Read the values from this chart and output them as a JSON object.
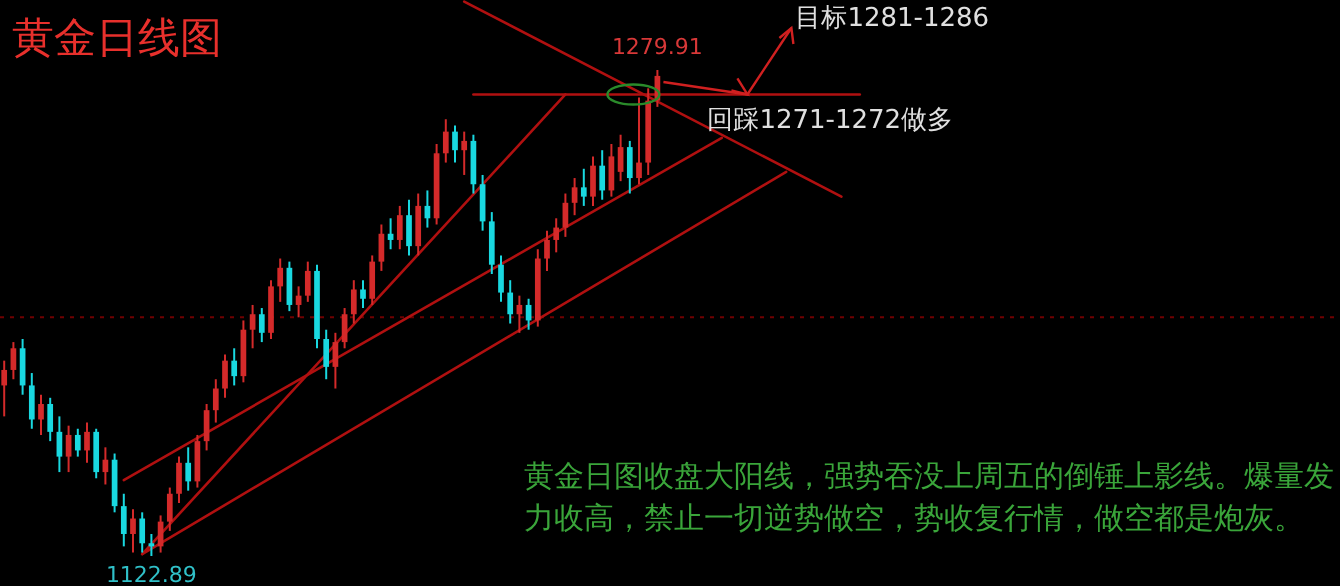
{
  "chart_data": {
    "type": "candlestick",
    "title": "黄金日线图",
    "categories": [
      null,
      null,
      null,
      null,
      null,
      null,
      null,
      null,
      null,
      null,
      null,
      null,
      null,
      null,
      null,
      null,
      null,
      null,
      null,
      null,
      null,
      null,
      null,
      null,
      null,
      null,
      null,
      null,
      null,
      null,
      null,
      null,
      null,
      null,
      null,
      null,
      null,
      null,
      null,
      null,
      null,
      null,
      null,
      null,
      null,
      null,
      null,
      null,
      null,
      null,
      null,
      null,
      null,
      null,
      null,
      null,
      null,
      null,
      null,
      null,
      null,
      null,
      null,
      null,
      null,
      null,
      null,
      null,
      null,
      null,
      null,
      null,
      null,
      null,
      null,
      null,
      null,
      null,
      null,
      null,
      null,
      null,
      null,
      null,
      null,
      null,
      null,
      null,
      null,
      null,
      null,
      null,
      null,
      null
    ],
    "ohlc": [
      [
        1178,
        1186,
        1168,
        1183
      ],
      [
        1183,
        1192,
        1180,
        1190
      ],
      [
        1190,
        1193,
        1175,
        1178
      ],
      [
        1178,
        1182,
        1164,
        1167
      ],
      [
        1167,
        1175,
        1162,
        1172
      ],
      [
        1172,
        1174,
        1160,
        1163
      ],
      [
        1163,
        1168,
        1150,
        1155
      ],
      [
        1155,
        1165,
        1150,
        1162
      ],
      [
        1162,
        1164,
        1155,
        1157
      ],
      [
        1157,
        1166,
        1153,
        1163
      ],
      [
        1163,
        1164,
        1148,
        1150
      ],
      [
        1150,
        1158,
        1146,
        1154
      ],
      [
        1154,
        1156,
        1137,
        1139
      ],
      [
        1139,
        1143,
        1126,
        1130
      ],
      [
        1130,
        1138,
        1124,
        1135
      ],
      [
        1135,
        1137,
        1124,
        1127
      ],
      [
        1127,
        1130,
        1122.89,
        1126
      ],
      [
        1126,
        1136,
        1124,
        1134
      ],
      [
        1134,
        1145,
        1131,
        1143
      ],
      [
        1143,
        1155,
        1140,
        1153
      ],
      [
        1153,
        1158,
        1144,
        1147
      ],
      [
        1147,
        1162,
        1145,
        1160
      ],
      [
        1160,
        1172,
        1157,
        1170
      ],
      [
        1170,
        1180,
        1166,
        1177
      ],
      [
        1177,
        1188,
        1174,
        1186
      ],
      [
        1186,
        1190,
        1178,
        1181
      ],
      [
        1181,
        1199,
        1179,
        1196
      ],
      [
        1196,
        1204,
        1190,
        1201
      ],
      [
        1201,
        1203,
        1192,
        1195
      ],
      [
        1195,
        1212,
        1193,
        1210
      ],
      [
        1210,
        1219,
        1205,
        1216
      ],
      [
        1216,
        1218,
        1202,
        1204
      ],
      [
        1204,
        1210,
        1200,
        1207
      ],
      [
        1207,
        1218,
        1205,
        1215
      ],
      [
        1215,
        1217,
        1190,
        1193
      ],
      [
        1193,
        1196,
        1180,
        1184
      ],
      [
        1184,
        1195,
        1177,
        1192
      ],
      [
        1192,
        1203,
        1190,
        1201
      ],
      [
        1201,
        1212,
        1198,
        1209
      ],
      [
        1209,
        1212,
        1203,
        1206
      ],
      [
        1206,
        1220,
        1204,
        1218
      ],
      [
        1218,
        1230,
        1215,
        1227
      ],
      [
        1227,
        1232,
        1222,
        1225
      ],
      [
        1225,
        1236,
        1222,
        1233
      ],
      [
        1233,
        1238,
        1220,
        1223
      ],
      [
        1223,
        1240,
        1220,
        1236
      ],
      [
        1236,
        1241,
        1229,
        1232
      ],
      [
        1232,
        1256,
        1230,
        1253
      ],
      [
        1253,
        1264,
        1250,
        1260
      ],
      [
        1260,
        1262,
        1250,
        1254
      ],
      [
        1254,
        1260,
        1246,
        1257
      ],
      [
        1257,
        1259,
        1240,
        1243
      ],
      [
        1243,
        1246,
        1228,
        1231
      ],
      [
        1231,
        1234,
        1214,
        1217
      ],
      [
        1217,
        1220,
        1205,
        1208
      ],
      [
        1208,
        1212,
        1198,
        1201
      ],
      [
        1201,
        1207,
        1195,
        1204
      ],
      [
        1204,
        1206,
        1196,
        1199
      ],
      [
        1199,
        1222,
        1197,
        1219
      ],
      [
        1219,
        1228,
        1215,
        1225
      ],
      [
        1225,
        1232,
        1221,
        1229
      ],
      [
        1229,
        1240,
        1226,
        1237
      ],
      [
        1237,
        1245,
        1233,
        1242
      ],
      [
        1242,
        1248,
        1236,
        1239
      ],
      [
        1239,
        1252,
        1236,
        1249
      ],
      [
        1249,
        1254,
        1238,
        1241
      ],
      [
        1241,
        1256,
        1239,
        1252
      ],
      [
        1247,
        1259,
        1244,
        1255
      ],
      [
        1255,
        1257,
        1240,
        1245
      ],
      [
        1245,
        1271,
        1243,
        1250
      ],
      [
        1250,
        1274,
        1246,
        1270
      ],
      [
        1270,
        1279.91,
        1268,
        1278
      ],
      null,
      null,
      null,
      null,
      null,
      null,
      null,
      null,
      null,
      null,
      null,
      null,
      null,
      null,
      null,
      null,
      null,
      null,
      null,
      null,
      null,
      null
    ],
    "colors": [
      "#d42a2a",
      "#d42a2a",
      "#19d8e0",
      "#19d8e0",
      "#d42a2a",
      "#19d8e0",
      "#19d8e0",
      "#d42a2a",
      "#19d8e0",
      "#d42a2a",
      "#19d8e0",
      "#d42a2a",
      "#19d8e0",
      "#19d8e0",
      "#d42a2a",
      "#19d8e0",
      "#19d8e0",
      "#d42a2a",
      "#d42a2a",
      "#d42a2a",
      "#19d8e0",
      "#d42a2a",
      "#d42a2a",
      "#d42a2a",
      "#d42a2a",
      "#19d8e0",
      "#d42a2a",
      "#d42a2a",
      "#19d8e0",
      "#d42a2a",
      "#d42a2a",
      "#19d8e0",
      "#d42a2a",
      "#d42a2a",
      "#19d8e0",
      "#19d8e0",
      "#d42a2a",
      "#d42a2a",
      "#d42a2a",
      "#19d8e0",
      "#d42a2a",
      "#d42a2a",
      "#19d8e0",
      "#d42a2a",
      "#19d8e0",
      "#d42a2a",
      "#19d8e0",
      "#d42a2a",
      "#d42a2a",
      "#19d8e0",
      "#d42a2a",
      "#19d8e0",
      "#19d8e0",
      "#19d8e0",
      "#19d8e0",
      "#19d8e0",
      "#d42a2a",
      "#19d8e0",
      "#d42a2a",
      "#d42a2a",
      "#d42a2a",
      "#d42a2a",
      "#d42a2a",
      "#19d8e0",
      "#d42a2a",
      "#19d8e0",
      "#d42a2a",
      "#d42a2a",
      "#19d8e0",
      "#d42a2a",
      "#d42a2a",
      "#d42a2a",
      null,
      null,
      null,
      null,
      null,
      null,
      null,
      null,
      null,
      null,
      null,
      null,
      null,
      null,
      null,
      null,
      null,
      null,
      null,
      null,
      null,
      null
    ],
    "series": [
      {
        "type": "line",
        "color": "#b01010",
        "values": [
          null,
          null,
          null,
          null,
          null,
          null,
          null,
          null,
          null,
          null,
          null,
          null,
          null,
          null,
          null,
          1123.5,
          null,
          null,
          null,
          null,
          null,
          null,
          null,
          null,
          null,
          null,
          null,
          null,
          null,
          null,
          null,
          null,
          null,
          null,
          null,
          null,
          null,
          null,
          null,
          null,
          null,
          null,
          null,
          null,
          null,
          null,
          null,
          null,
          null,
          null,
          null,
          null,
          null,
          null,
          null,
          null,
          null,
          null,
          null,
          null,
          null,
          1272,
          null,
          null,
          null,
          null,
          null,
          null,
          null,
          null,
          null,
          null,
          null,
          null,
          null,
          null,
          null,
          null,
          null,
          null,
          null,
          null,
          null,
          null,
          null,
          null,
          null,
          null,
          null,
          null,
          null,
          null,
          null,
          null
        ]
      },
      {
        "type": "line",
        "color": "#b01010",
        "values": [
          null,
          null,
          null,
          null,
          null,
          null,
          null,
          null,
          null,
          null,
          null,
          null,
          null,
          1147.4,
          null,
          null,
          null,
          null,
          null,
          null,
          null,
          null,
          null,
          null,
          null,
          null,
          null,
          null,
          null,
          null,
          null,
          null,
          null,
          null,
          null,
          null,
          null,
          null,
          null,
          null,
          null,
          null,
          null,
          null,
          null,
          null,
          null,
          null,
          null,
          null,
          null,
          null,
          null,
          null,
          null,
          null,
          null,
          null,
          null,
          null,
          null,
          null,
          null,
          null,
          null,
          null,
          null,
          null,
          null,
          null,
          null,
          null,
          null,
          null,
          null,
          null,
          null,
          null,
          1258,
          null,
          null,
          null,
          null,
          null,
          null,
          null,
          null,
          null,
          null,
          null,
          null,
          null,
          null,
          null
        ]
      },
      {
        "type": "line",
        "color": "#b01010",
        "values": [
          null,
          null,
          null,
          null,
          null,
          null,
          null,
          null,
          null,
          null,
          null,
          null,
          null,
          null,
          null,
          1123.5,
          null,
          null,
          null,
          null,
          null,
          null,
          null,
          null,
          null,
          null,
          null,
          null,
          null,
          null,
          null,
          null,
          null,
          null,
          null,
          null,
          null,
          null,
          null,
          null,
          null,
          null,
          null,
          null,
          null,
          null,
          null,
          null,
          null,
          null,
          null,
          null,
          null,
          null,
          null,
          null,
          null,
          null,
          null,
          null,
          null,
          null,
          null,
          null,
          null,
          null,
          null,
          null,
          null,
          null,
          null,
          null,
          null,
          null,
          null,
          null,
          null,
          null,
          null,
          null,
          null,
          null,
          null,
          null,
          null,
          1247,
          null,
          null,
          null,
          null,
          null,
          null,
          null,
          null
        ]
      },
      {
        "type": "line",
        "color": "#b01010",
        "values": [
          null,
          null,
          null,
          null,
          null,
          null,
          null,
          null,
          null,
          null,
          null,
          null,
          null,
          null,
          null,
          null,
          null,
          null,
          null,
          null,
          null,
          null,
          null,
          null,
          null,
          null,
          null,
          null,
          null,
          null,
          null,
          null,
          null,
          null,
          null,
          null,
          null,
          null,
          null,
          null,
          null,
          null,
          null,
          null,
          null,
          null,
          null,
          null,
          null,
          null,
          1302,
          null,
          null,
          null,
          null,
          null,
          null,
          null,
          null,
          null,
          null,
          null,
          null,
          null,
          null,
          null,
          null,
          null,
          null,
          null,
          null,
          null,
          null,
          null,
          null,
          null,
          null,
          null,
          null,
          null,
          null,
          null,
          null,
          null,
          null,
          null,
          null,
          null,
          null,
          null,
          null,
          1239,
          null,
          null
        ]
      },
      {
        "type": "line",
        "color": "#b01010",
        "values": [
          null,
          null,
          null,
          null,
          null,
          null,
          null,
          null,
          null,
          null,
          null,
          null,
          null,
          null,
          null,
          null,
          null,
          null,
          null,
          null,
          null,
          null,
          null,
          null,
          null,
          null,
          null,
          null,
          null,
          null,
          null,
          null,
          null,
          null,
          null,
          null,
          null,
          null,
          null,
          null,
          null,
          null,
          null,
          null,
          null,
          null,
          null,
          null,
          null,
          null,
          null,
          1272,
          null,
          null,
          null,
          null,
          null,
          null,
          null,
          null,
          null,
          null,
          null,
          null,
          null,
          null,
          null,
          null,
          null,
          null,
          null,
          null,
          null,
          null,
          null,
          null,
          null,
          null,
          null,
          null,
          null,
          null,
          null,
          null,
          null,
          null,
          null,
          null,
          null,
          null,
          null,
          null,
          null,
          1272
        ]
      }
    ],
    "ref_lines": [
      {
        "axis": "y",
        "value": 1200,
        "color": "#700000",
        "line_style": "dotted"
      }
    ],
    "annotations": [
      {
        "text": "1279.91",
        "y": 1279.91
      },
      {
        "text": "1122.89",
        "y": 1122.89
      },
      "目标1281-1286",
      "回踩1271-1272做多",
      "黄金日图收盘大阳线，强势吞没上周五的倒锤上影线。爆量发力收高，禁止一切逆势做空，势收复行情，做空都是炮灰。"
    ]
  }
}
